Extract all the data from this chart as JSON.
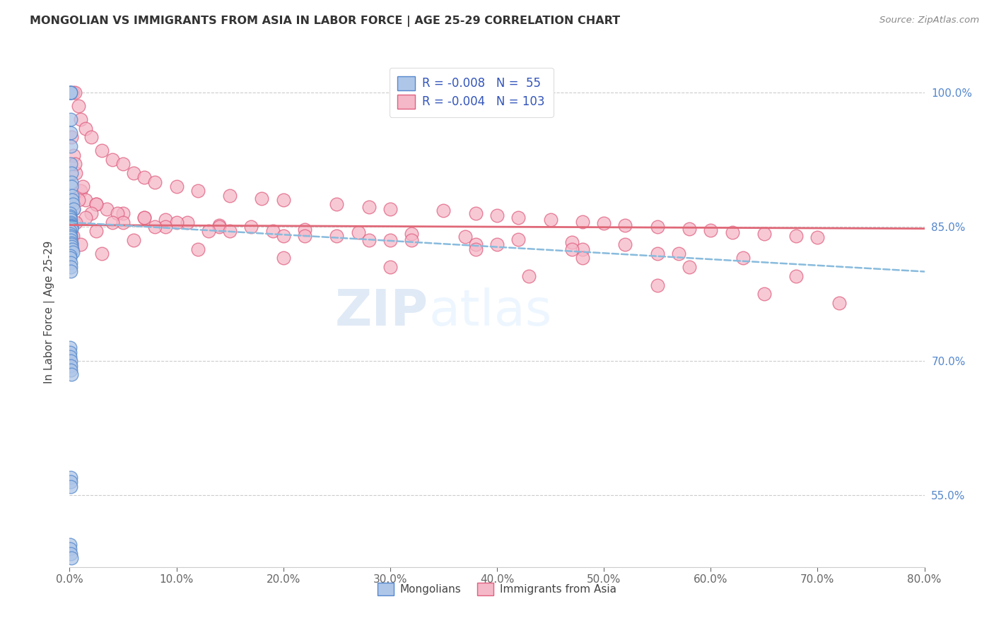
{
  "title": "MONGOLIAN VS IMMIGRANTS FROM ASIA IN LABOR FORCE | AGE 25-29 CORRELATION CHART",
  "source": "Source: ZipAtlas.com",
  "ylabel": "In Labor Force | Age 25-29",
  "xlabel_vals": [
    0.0,
    10.0,
    20.0,
    30.0,
    40.0,
    50.0,
    60.0,
    70.0,
    80.0
  ],
  "ylabel_vals": [
    55.0,
    70.0,
    85.0,
    100.0
  ],
  "xmin": 0.0,
  "xmax": 80.0,
  "ymin": 47.0,
  "ymax": 104.0,
  "blue_R": -0.008,
  "blue_N": 55,
  "pink_R": -0.004,
  "pink_N": 103,
  "blue_color": "#aec6e8",
  "pink_color": "#f5b8c8",
  "blue_edge": "#5588cc",
  "pink_edge": "#e06080",
  "trendline_blue_color": "#88bbdd",
  "trendline_pink_color": "#e06878",
  "legend_label_blue": "Mongolians",
  "legend_label_pink": "Immigrants from Asia",
  "watermark_zip": "ZIP",
  "watermark_atlas": "atlas",
  "blue_trendline_x0": 0.0,
  "blue_trendline_y0": 85.5,
  "blue_trendline_x1": 80.0,
  "blue_trendline_y1": 80.0,
  "pink_trendline_x0": 0.0,
  "pink_trendline_y0": 85.2,
  "pink_trendline_x1": 80.0,
  "pink_trendline_y1": 84.8,
  "blue_scatter_x": [
    0.05,
    0.07,
    0.08,
    0.09,
    0.1,
    0.1,
    0.12,
    0.13,
    0.15,
    0.18,
    0.2,
    0.22,
    0.25,
    0.3,
    0.35,
    0.05,
    0.06,
    0.07,
    0.08,
    0.09,
    0.1,
    0.12,
    0.13,
    0.15,
    0.18,
    0.2,
    0.05,
    0.07,
    0.08,
    0.1,
    0.12,
    0.15,
    0.18,
    0.2,
    0.25,
    0.3,
    0.05,
    0.06,
    0.08,
    0.1,
    0.12,
    0.05,
    0.06,
    0.07,
    0.08,
    0.1,
    0.12,
    0.15,
    0.08,
    0.1,
    0.12,
    0.05,
    0.07,
    0.1,
    0.15
  ],
  "blue_scatter_y": [
    100.0,
    100.0,
    100.0,
    100.0,
    97.0,
    95.5,
    94.0,
    92.0,
    91.0,
    90.0,
    89.5,
    88.5,
    88.0,
    87.5,
    87.0,
    86.5,
    86.2,
    86.0,
    85.8,
    85.5,
    85.3,
    85.2,
    85.1,
    85.0,
    84.9,
    84.8,
    84.5,
    84.2,
    84.0,
    83.8,
    83.5,
    83.2,
    83.0,
    82.8,
    82.5,
    82.2,
    81.8,
    81.5,
    81.0,
    80.5,
    80.0,
    71.5,
    71.0,
    70.5,
    70.0,
    69.5,
    69.0,
    68.5,
    57.0,
    56.5,
    56.0,
    49.5,
    49.0,
    48.5,
    48.0
  ],
  "pink_scatter_x": [
    0.3,
    0.5,
    0.8,
    1.0,
    1.5,
    2.0,
    3.0,
    4.0,
    5.0,
    6.0,
    7.0,
    8.0,
    10.0,
    12.0,
    15.0,
    18.0,
    20.0,
    25.0,
    28.0,
    30.0,
    35.0,
    38.0,
    40.0,
    42.0,
    45.0,
    48.0,
    50.0,
    52.0,
    55.0,
    58.0,
    60.0,
    62.0,
    65.0,
    68.0,
    70.0,
    0.2,
    0.4,
    0.6,
    1.0,
    1.5,
    2.5,
    3.5,
    5.0,
    7.0,
    9.0,
    11.0,
    14.0,
    17.0,
    22.0,
    27.0,
    32.0,
    37.0,
    42.0,
    47.0,
    52.0,
    0.5,
    1.2,
    2.5,
    4.5,
    7.0,
    10.0,
    14.0,
    19.0,
    25.0,
    32.0,
    40.0,
    48.0,
    57.0,
    0.8,
    2.0,
    5.0,
    9.0,
    15.0,
    22.0,
    30.0,
    38.0,
    47.0,
    55.0,
    63.0,
    0.4,
    1.5,
    4.0,
    8.0,
    13.0,
    20.0,
    28.0,
    38.0,
    48.0,
    58.0,
    68.0,
    0.6,
    2.5,
    6.0,
    12.0,
    20.0,
    30.0,
    43.0,
    55.0,
    65.0,
    72.0,
    0.3,
    1.0,
    3.0
  ],
  "pink_scatter_y": [
    100.0,
    100.0,
    98.5,
    97.0,
    96.0,
    95.0,
    93.5,
    92.5,
    92.0,
    91.0,
    90.5,
    90.0,
    89.5,
    89.0,
    88.5,
    88.2,
    88.0,
    87.5,
    87.2,
    87.0,
    86.8,
    86.5,
    86.3,
    86.0,
    85.8,
    85.6,
    85.4,
    85.2,
    85.0,
    84.8,
    84.6,
    84.4,
    84.2,
    84.0,
    83.8,
    95.0,
    93.0,
    91.0,
    89.0,
    88.0,
    87.5,
    87.0,
    86.5,
    86.0,
    85.8,
    85.5,
    85.2,
    85.0,
    84.7,
    84.4,
    84.2,
    83.9,
    83.6,
    83.3,
    83.0,
    92.0,
    89.5,
    87.5,
    86.5,
    86.0,
    85.5,
    85.0,
    84.5,
    84.0,
    83.5,
    83.0,
    82.5,
    82.0,
    88.0,
    86.5,
    85.5,
    85.0,
    84.5,
    84.0,
    83.5,
    83.0,
    82.5,
    82.0,
    81.5,
    87.0,
    86.0,
    85.5,
    85.0,
    84.5,
    84.0,
    83.5,
    82.5,
    81.5,
    80.5,
    79.5,
    85.5,
    84.5,
    83.5,
    82.5,
    81.5,
    80.5,
    79.5,
    78.5,
    77.5,
    76.5,
    84.0,
    83.0,
    82.0
  ]
}
